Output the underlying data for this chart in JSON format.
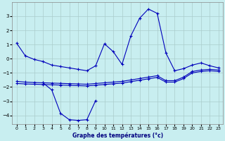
{
  "title": "Graphe des températures (°c)",
  "background_color": "#c8eef0",
  "grid_color": "#aacccc",
  "line_color": "#0000bb",
  "xlim": [
    -0.5,
    23.5
  ],
  "ylim": [
    -4.6,
    4.0
  ],
  "xticks": [
    0,
    1,
    2,
    3,
    4,
    5,
    6,
    7,
    8,
    9,
    10,
    11,
    12,
    13,
    14,
    15,
    16,
    17,
    18,
    19,
    20,
    21,
    22,
    23
  ],
  "yticks": [
    -4,
    -3,
    -2,
    -1,
    0,
    1,
    2,
    3
  ],
  "s1x": [
    0,
    1,
    2,
    3,
    4,
    5,
    6,
    7,
    8,
    9,
    10,
    11,
    12,
    13,
    14,
    15,
    16,
    17,
    18,
    19,
    20,
    21,
    22,
    23
  ],
  "s1y": [
    1.1,
    0.2,
    -0.05,
    -0.2,
    -0.45,
    -0.55,
    -0.65,
    -0.75,
    -0.85,
    -0.5,
    1.05,
    0.5,
    -0.4,
    1.6,
    2.85,
    3.5,
    3.2,
    0.4,
    -0.85,
    -0.7,
    -0.45,
    -0.3,
    -0.5,
    -0.65
  ],
  "s2x": [
    0,
    1,
    2,
    3,
    4,
    5,
    6,
    7,
    8,
    9,
    10,
    11,
    12,
    13,
    14,
    15,
    16,
    17,
    18,
    19,
    20,
    21,
    22,
    23
  ],
  "s2y": [
    -1.6,
    -1.65,
    -1.68,
    -1.7,
    -1.72,
    -1.74,
    -1.76,
    -1.78,
    -1.8,
    -1.75,
    -1.7,
    -1.65,
    -1.6,
    -1.5,
    -1.4,
    -1.3,
    -1.2,
    -1.55,
    -1.55,
    -1.3,
    -0.9,
    -0.8,
    -0.75,
    -0.8
  ],
  "s3x": [
    0,
    1,
    2,
    3,
    4,
    5,
    6,
    7,
    8,
    9,
    10,
    11,
    12,
    13,
    14,
    15,
    16,
    17,
    18,
    19,
    20,
    21,
    22,
    23
  ],
  "s3y": [
    -1.75,
    -1.78,
    -1.8,
    -1.82,
    -1.84,
    -1.86,
    -1.88,
    -1.9,
    -1.92,
    -1.87,
    -1.82,
    -1.77,
    -1.72,
    -1.62,
    -1.52,
    -1.42,
    -1.32,
    -1.65,
    -1.65,
    -1.4,
    -1.0,
    -0.9,
    -0.85,
    -0.9
  ],
  "s4x": [
    3,
    4,
    5,
    6,
    7,
    8,
    9
  ],
  "s4y": [
    -1.7,
    -2.2,
    -3.85,
    -4.3,
    -4.35,
    -4.3,
    -2.95
  ]
}
